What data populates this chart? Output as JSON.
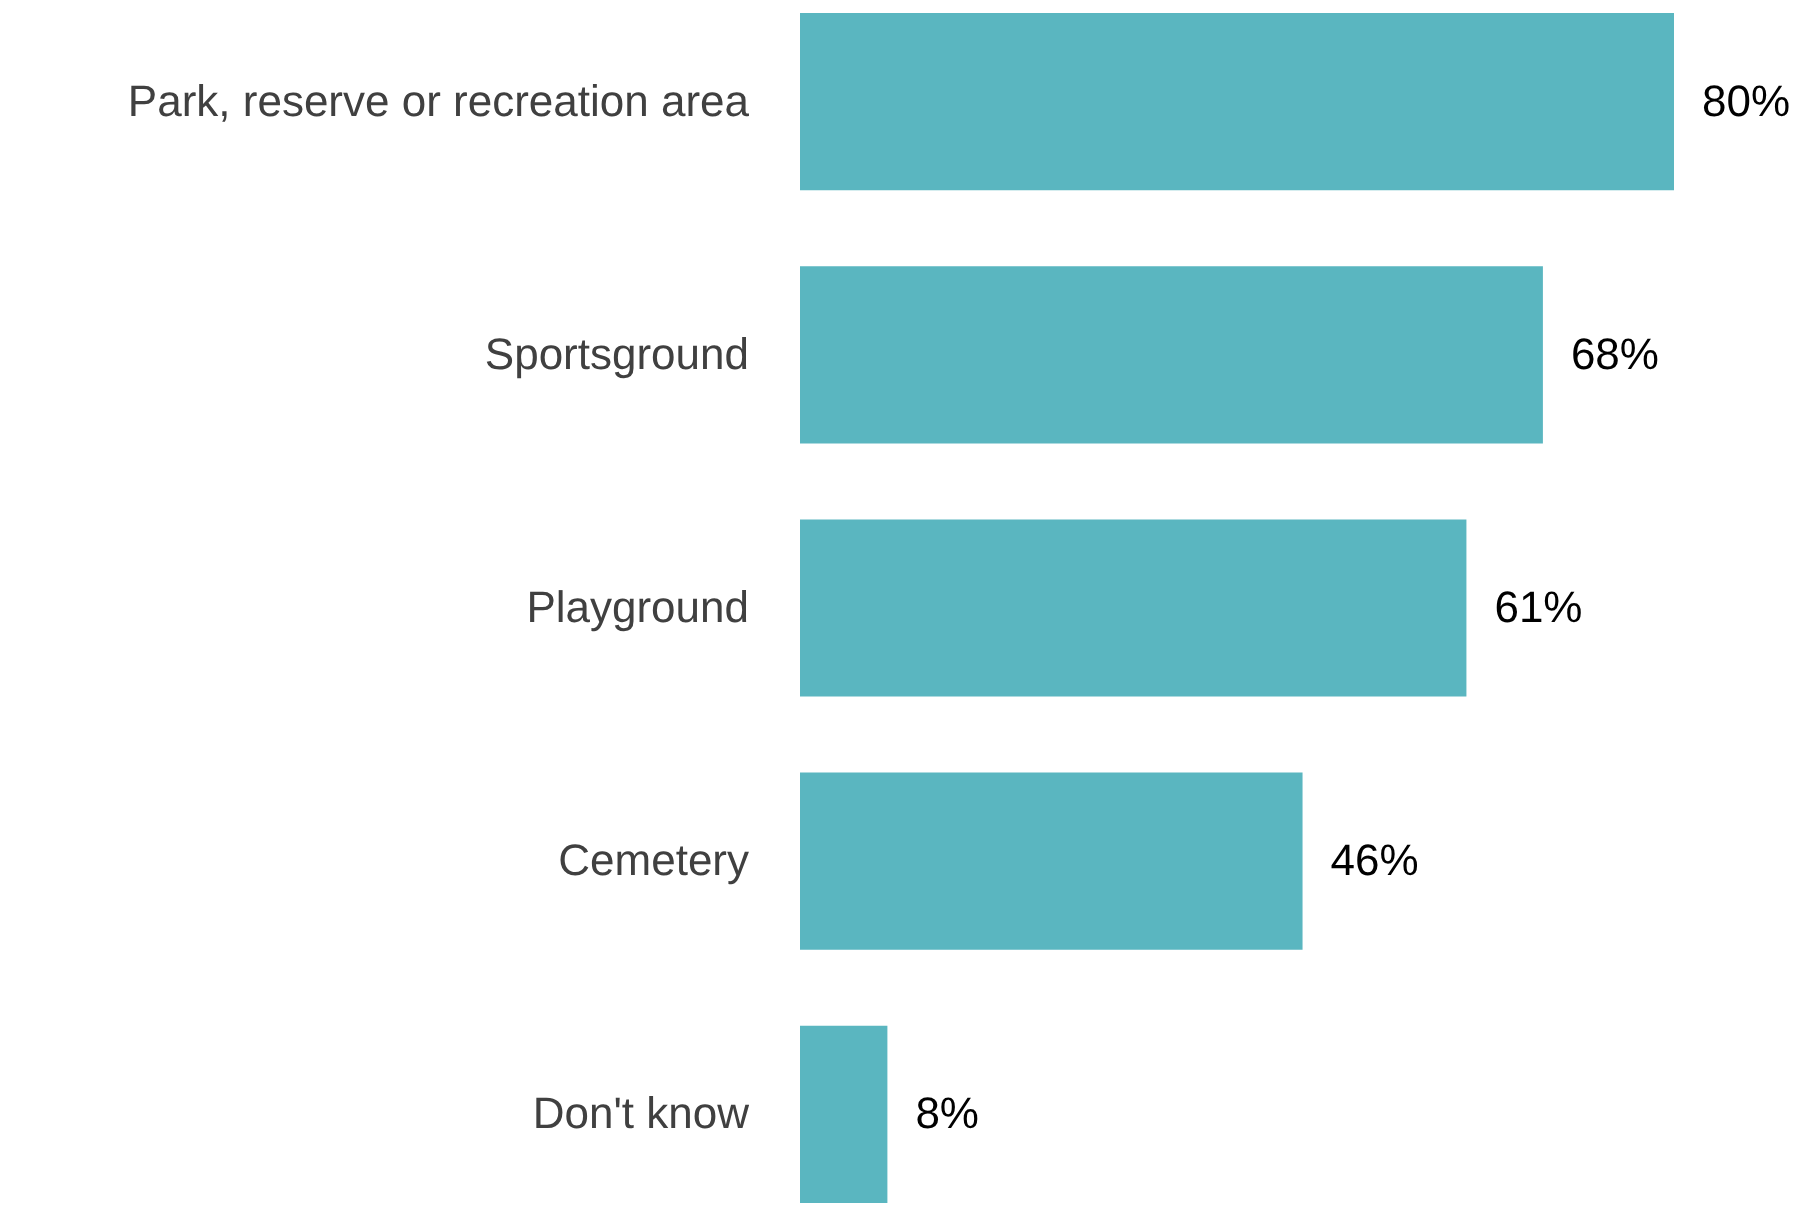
{
  "chart_data": {
    "type": "bar",
    "orientation": "horizontal",
    "categories": [
      "Park, reserve or recreation area",
      "Sportsground",
      "Playground",
      "Cemetery",
      "Don't know"
    ],
    "values": [
      80,
      68,
      61,
      46,
      8
    ],
    "value_labels": [
      "80%",
      "68%",
      "61%",
      "46%",
      "8%"
    ],
    "color": "#5ab6c0"
  }
}
